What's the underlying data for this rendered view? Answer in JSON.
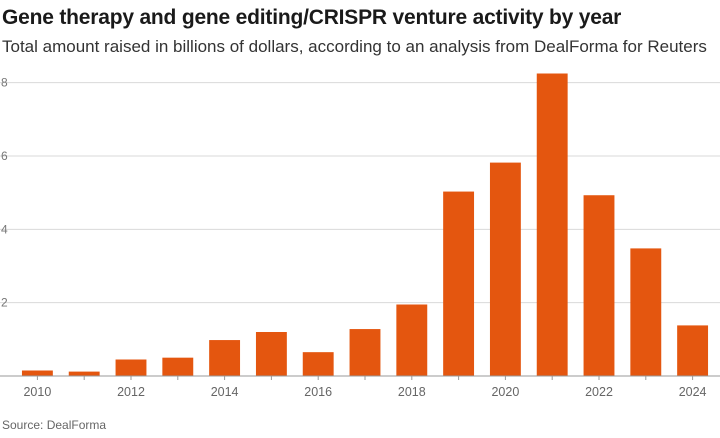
{
  "title": "Gene therapy and gene editing/CRISPR venture activity by year",
  "subtitle": "Total amount raised in billions of dollars, according to an analysis from DealForma for Reuters",
  "source": "Source: DealForma",
  "colors": {
    "bar": "#e4560f",
    "grid": "#d9d9d9"
  },
  "chart_data": {
    "type": "bar",
    "title": "Gene therapy and gene editing/CRISPR venture activity by year",
    "subtitle": "Total amount raised in billions of dollars, according to an analysis from DealForma for Reuters",
    "xlabel": "",
    "ylabel": "",
    "categories": [
      "2010",
      "2011",
      "2012",
      "2013",
      "2014",
      "2015",
      "2016",
      "2017",
      "2018",
      "2019",
      "2020",
      "2021",
      "2022",
      "2023",
      "2024"
    ],
    "values": [
      0.15,
      0.12,
      0.45,
      0.5,
      0.98,
      1.2,
      0.65,
      1.28,
      1.95,
      5.03,
      5.82,
      8.25,
      4.93,
      3.48,
      1.38
    ],
    "x_tick_labels": [
      "2010",
      "2012",
      "2014",
      "2016",
      "2018",
      "2020",
      "2022",
      "2024"
    ],
    "y_ticks": [
      "2",
      "4",
      "6",
      "8"
    ],
    "ylim": [
      0,
      8.4
    ],
    "grid": true,
    "legend": "none"
  }
}
